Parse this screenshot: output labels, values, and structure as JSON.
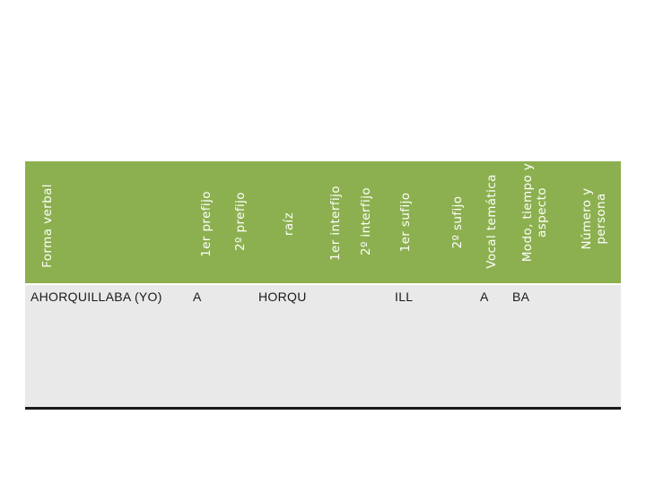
{
  "header": {
    "forma_verbal": "Forma verbal",
    "primer_prefijo": "1er prefijo",
    "segundo_prefijo": "2º prefijo",
    "raiz": "raíz",
    "primer_interfijo": "1er interfijo",
    "segundo_interfijo": "2º interfijo",
    "primer_sufijo": "1er sufijo",
    "segundo_sufijo": "2º sufijo",
    "vocal_tematica": "Vocal temática",
    "modo_line1": "Modo, tiempo y",
    "modo_line2": "aspecto",
    "numero_line1": "Número y",
    "numero_line2": "persona"
  },
  "row": {
    "forma_verbal": "AHORQUILLABA (YO)",
    "primer_prefijo": "A",
    "raiz": "HORQU",
    "primer_sufijo": "ILL",
    "vocal_tematica": "A",
    "modo": "BA"
  },
  "colors": {
    "header_bg": "#8cb04f",
    "body_bg": "#e9e9e9",
    "rule": "#1a1a1a"
  }
}
